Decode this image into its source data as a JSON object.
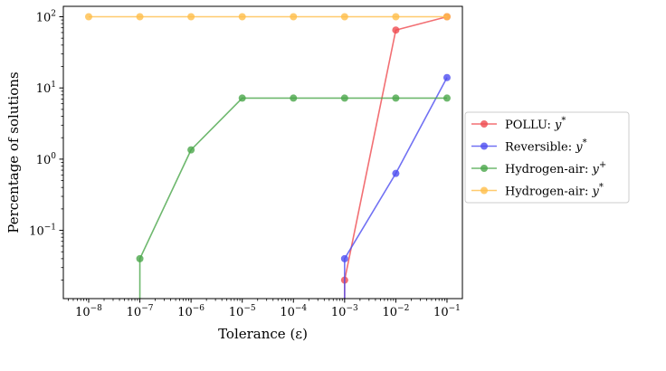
{
  "chart_data": {
    "type": "line",
    "xlabel": "Tolerance (ε)",
    "ylabel": "Percentage of solutions",
    "xscale": "log",
    "yscale": "log",
    "xlim": [
      3.2e-09,
      0.2
    ],
    "ylim": [
      0.011,
      140
    ],
    "x_ticks": [
      {
        "value": 1e-08,
        "base": "10",
        "exp": "−8"
      },
      {
        "value": 1e-07,
        "base": "10",
        "exp": "−7"
      },
      {
        "value": 1e-06,
        "base": "10",
        "exp": "−6"
      },
      {
        "value": 1e-05,
        "base": "10",
        "exp": "−5"
      },
      {
        "value": 0.0001,
        "base": "10",
        "exp": "−4"
      },
      {
        "value": 0.001,
        "base": "10",
        "exp": "−3"
      },
      {
        "value": 0.01,
        "base": "10",
        "exp": "−2"
      },
      {
        "value": 0.1,
        "base": "10",
        "exp": "−1"
      }
    ],
    "y_ticks": [
      {
        "value": 0.1,
        "base": "10",
        "exp": "−1"
      },
      {
        "value": 1,
        "base": "10",
        "exp": "0"
      },
      {
        "value": 10,
        "base": "10",
        "exp": "1"
      },
      {
        "value": 100,
        "base": "10",
        "exp": "2"
      }
    ],
    "legend_position": "center-right",
    "grid": false,
    "series": [
      {
        "name": "POLLU: y*",
        "label_main": "POLLU: ",
        "label_var": "y",
        "label_sup": "*",
        "color": "#ef4b50",
        "x": [
          0.001,
          0.01,
          0.1
        ],
        "y": [
          0.02,
          65,
          100
        ],
        "drop_to_floor_at": 0.001
      },
      {
        "name": "Reversible: y*",
        "label_main": "Reversible: ",
        "label_var": "y",
        "label_sup": "*",
        "color": "#4e4ef0",
        "x": [
          0.001,
          0.01,
          0.1
        ],
        "y": [
          0.04,
          0.63,
          14
        ],
        "drop_to_floor_at": 0.001
      },
      {
        "name": "Hydrogen-air: y+",
        "label_main": "Hydrogen-air: ",
        "label_var": "y",
        "label_sup": "+",
        "color": "#4aa64a",
        "x": [
          1e-07,
          1e-06,
          1e-05,
          0.0001,
          0.001,
          0.01,
          0.1
        ],
        "y": [
          0.04,
          1.35,
          7.2,
          7.2,
          7.2,
          7.2,
          7.2
        ],
        "drop_to_floor_at": 1e-07
      },
      {
        "name": "Hydrogen-air: y*",
        "label_main": "Hydrogen-air: ",
        "label_var": "y",
        "label_sup": "*",
        "color": "#ffbe4a",
        "x": [
          1e-08,
          1e-07,
          1e-06,
          1e-05,
          0.0001,
          0.001,
          0.01,
          0.1
        ],
        "y": [
          100,
          100,
          100,
          100,
          100,
          100,
          100,
          100
        ],
        "drop_to_floor_at": null
      }
    ]
  }
}
